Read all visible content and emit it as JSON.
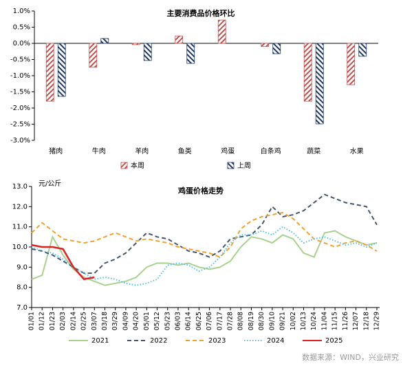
{
  "chart_data": [
    {
      "type": "bar",
      "title": "主要消费品价格环比",
      "categories": [
        "猪肉",
        "牛肉",
        "羊肉",
        "鱼类",
        "鸡蛋",
        "白条鸡",
        "蔬菜",
        "水果"
      ],
      "series": [
        {
          "name": "本周",
          "color": "#c0504d",
          "values": [
            -1.79,
            -0.74,
            -0.04,
            0.23,
            0.72,
            -0.1,
            -1.79,
            -1.28
          ]
        },
        {
          "name": "上周",
          "color": "#1f3864",
          "values": [
            -1.64,
            0.15,
            -0.53,
            -0.62,
            0,
            -0.32,
            -2.49,
            -0.4
          ]
        }
      ],
      "ylim": [
        -3,
        1
      ],
      "yticks": [
        {
          "value": -3,
          "label": "-3.0%"
        },
        {
          "value": -2.5,
          "label": "-2.5%"
        },
        {
          "value": -2,
          "label": "-2.0%"
        },
        {
          "value": -1.5,
          "label": "-1.5%"
        },
        {
          "value": -1,
          "label": "-1.0%"
        },
        {
          "value": -0.5,
          "label": "-0.5%"
        },
        {
          "value": 0,
          "label": "0.0%"
        },
        {
          "value": 0.5,
          "label": "0.5%"
        },
        {
          "value": 1,
          "label": "1.0%"
        }
      ],
      "grid": false,
      "legend": "bottom"
    },
    {
      "type": "line",
      "title": "鸡蛋价格走势",
      "ylabel": "元/公斤",
      "categories": [
        "01/01",
        "01/12",
        "01/23",
        "02/03",
        "02/14",
        "02/25",
        "03/07",
        "03/18",
        "03/29",
        "04/09",
        "04/20",
        "05/01",
        "05/12",
        "05/23",
        "06/03",
        "06/14",
        "06/25",
        "07/06",
        "07/17",
        "07/28",
        "08/08",
        "08/19",
        "08/30",
        "09/10",
        "09/21",
        "10/02",
        "10/13",
        "10/24",
        "11/04",
        "11/15",
        "11/26",
        "12/07",
        "12/18",
        "12/29"
      ],
      "series": [
        {
          "name": "2021",
          "color": "#a9d18e",
          "dash": "solid",
          "values": [
            8.4,
            8.6,
            10.5,
            9.6,
            8.9,
            8.5,
            8.3,
            8.1,
            8.2,
            8.3,
            8.5,
            9.0,
            9.2,
            9.2,
            9.1,
            9.2,
            9.0,
            8.9,
            9.0,
            9.3,
            10.0,
            10.5,
            10.4,
            10.2,
            10.6,
            10.4,
            9.7,
            9.5,
            10.7,
            10.8,
            10.5,
            10.3,
            10.1,
            10.2
          ]
        },
        {
          "name": "2022",
          "color": "#44546a",
          "dash": "dashed",
          "values": [
            9.9,
            9.8,
            9.6,
            9.3,
            9.0,
            8.7,
            8.7,
            9.2,
            9.4,
            9.7,
            10.2,
            10.7,
            10.5,
            10.4,
            10.1,
            9.8,
            9.7,
            9.5,
            9.8,
            10.4,
            10.5,
            10.6,
            11.1,
            12.0,
            11.5,
            11.6,
            11.8,
            12.2,
            12.6,
            12.4,
            12.2,
            12.1,
            12.0,
            11.1
          ]
        },
        {
          "name": "2023",
          "color": "#f0a030",
          "dash": "dashed",
          "values": [
            10.7,
            11.2,
            10.8,
            10.4,
            10.3,
            10.2,
            10.3,
            10.5,
            10.7,
            10.5,
            10.3,
            10.4,
            10.3,
            10.2,
            10.0,
            9.9,
            9.8,
            9.7,
            9.5,
            10.0,
            10.9,
            11.3,
            11.5,
            11.6,
            11.7,
            11.4,
            10.9,
            10.4,
            10.2,
            10.0,
            10.2,
            10.3,
            10.1,
            9.8
          ]
        },
        {
          "name": "2024",
          "color": "#4fc1e9",
          "dash": "dotted",
          "values": [
            10.0,
            9.8,
            9.7,
            9.4,
            9.0,
            8.7,
            8.4,
            8.5,
            8.4,
            8.2,
            8.1,
            8.2,
            8.4,
            9.1,
            9.2,
            9.1,
            8.8,
            9.0,
            9.5,
            10.2,
            10.6,
            10.6,
            10.8,
            10.6,
            11.0,
            10.7,
            10.2,
            10.4,
            10.5,
            10.3,
            10.1,
            10.2,
            10.0,
            10.2
          ]
        },
        {
          "name": "2025",
          "color": "#e02020",
          "dash": "solid",
          "values": [
            10.1,
            10.0,
            10.0,
            9.9,
            9.0,
            8.4,
            8.5,
            null,
            null,
            null,
            null,
            null,
            null,
            null,
            null,
            null,
            null,
            null,
            null,
            null,
            null,
            null,
            null,
            null,
            null,
            null,
            null,
            null,
            null,
            null,
            null,
            null,
            null,
            null
          ]
        }
      ],
      "ylim": [
        7,
        13
      ],
      "yticks": [
        {
          "value": 7,
          "label": "7.0"
        },
        {
          "value": 8,
          "label": "8.0"
        },
        {
          "value": 9,
          "label": "9.0"
        },
        {
          "value": 10,
          "label": "10.0"
        },
        {
          "value": 11,
          "label": "11.0"
        },
        {
          "value": 12,
          "label": "12.0"
        },
        {
          "value": 13,
          "label": "13.0"
        }
      ],
      "grid": false,
      "legend": "bottom"
    }
  ],
  "source": "数据来源：WIND，兴业研究"
}
